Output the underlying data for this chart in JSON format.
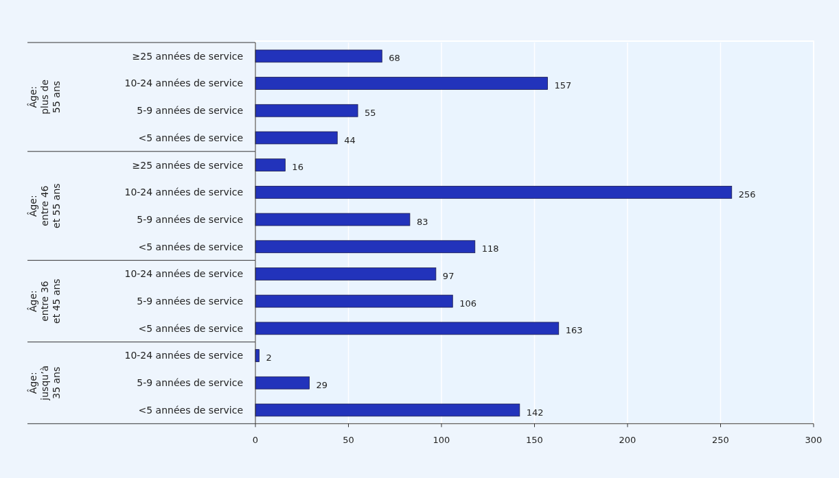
{
  "chart_data": [
    {
      "type": "bar",
      "orientation": "horizontal",
      "ylabel": "Âge:\nplus de\n55 ans",
      "categories": [
        "≥25 années de service",
        "10-24 années de service",
        "5-9 années de service",
        "<5 années de service"
      ],
      "values": [
        68,
        157,
        55,
        44
      ],
      "color": "#2233bb",
      "xlim": [
        0,
        300
      ],
      "xticks": [
        0,
        50,
        100,
        150,
        200,
        250,
        300
      ],
      "grid": "x",
      "data_labels": true,
      "tick_labels": "y"
    },
    {
      "type": "bar",
      "orientation": "horizontal",
      "ylabel": "Âge:\nentre 46\net 55 ans",
      "categories": [
        "≥25 années de service",
        "10-24 années de service",
        "5-9 années de service",
        "<5 années de service"
      ],
      "values": [
        16,
        256,
        83,
        118
      ],
      "color": "#2233bb",
      "xlim": [
        0,
        300
      ],
      "xticks": [
        0,
        50,
        100,
        150,
        200,
        250,
        300
      ],
      "grid": "x",
      "data_labels": true,
      "tick_labels": "y"
    },
    {
      "type": "bar",
      "orientation": "horizontal",
      "ylabel": "Âge:\nentre 36\net 45 ans",
      "categories": [
        "10-24 années de service",
        "5-9 années de service",
        "<5 années de service"
      ],
      "values": [
        97,
        106,
        163
      ],
      "color": "#2233bb",
      "xlim": [
        0,
        300
      ],
      "xticks": [
        0,
        50,
        100,
        150,
        200,
        250,
        300
      ],
      "grid": "x",
      "data_labels": true,
      "tick_labels": "y"
    },
    {
      "type": "bar",
      "orientation": "horizontal",
      "ylabel": "Âge:\njusqu’à\n35 ans",
      "categories": [
        "10-24 années de service",
        "5-9 années de service",
        "<5 années de service"
      ],
      "values": [
        2,
        29,
        142
      ],
      "color": "#2233bb",
      "xlim": [
        0,
        300
      ],
      "xticks": [
        0,
        50,
        100,
        150,
        200,
        250,
        300
      ],
      "grid": "x",
      "data_labels": true
    }
  ]
}
